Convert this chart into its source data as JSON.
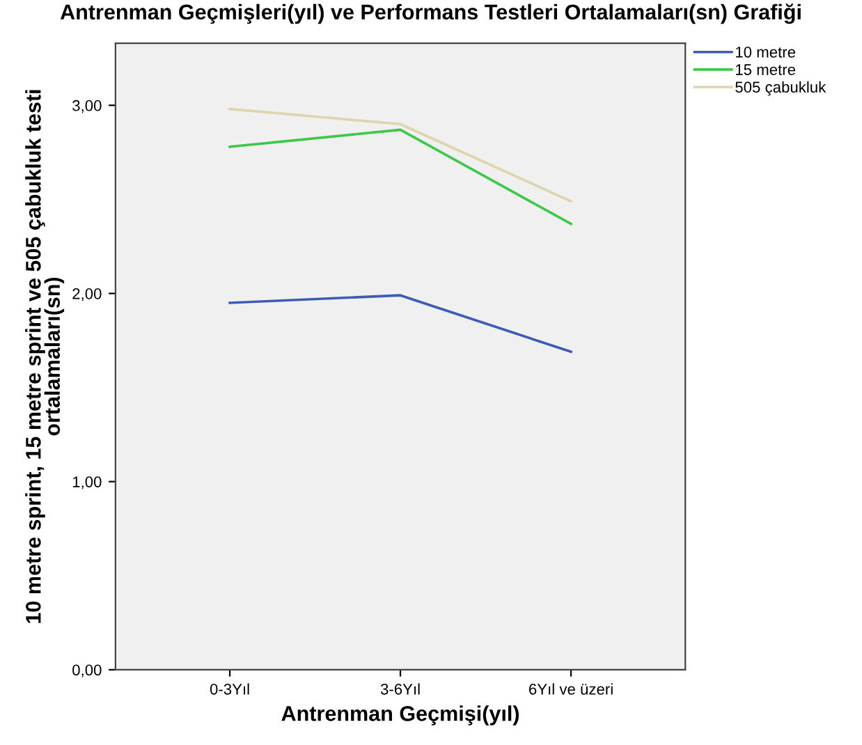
{
  "chart_data": {
    "type": "line",
    "title": "Antrenman Geçmişleri(yıl) ve Performans Testleri Ortalamaları(sn) Grafiği",
    "xlabel": "Antrenman Geçmişi(yıl)",
    "ylabel": "10 metre sprint, 15 metre sprint ve 505 çabukluk testi\nortalamaları(sn)",
    "categories": [
      "0-3Yıl",
      "3-6Yıl",
      "6Yıl ve üzeri"
    ],
    "series": [
      {
        "name": "10 metre",
        "color": "#3d5bb5",
        "values": [
          1.95,
          1.99,
          1.69
        ]
      },
      {
        "name": "15 metre",
        "color": "#3ec84a",
        "values": [
          2.78,
          2.87,
          2.37
        ]
      },
      {
        "name": "505 çabukluk",
        "color": "#ddd5ad",
        "values": [
          2.98,
          2.9,
          2.49
        ]
      }
    ],
    "ylim": [
      0,
      3.33
    ],
    "yticks": [
      {
        "value": 0,
        "label": "0,00"
      },
      {
        "value": 1,
        "label": "1,00"
      },
      {
        "value": 2,
        "label": "2,00"
      },
      {
        "value": 3,
        "label": "3,00"
      }
    ],
    "grid": false,
    "legend": "top right"
  }
}
